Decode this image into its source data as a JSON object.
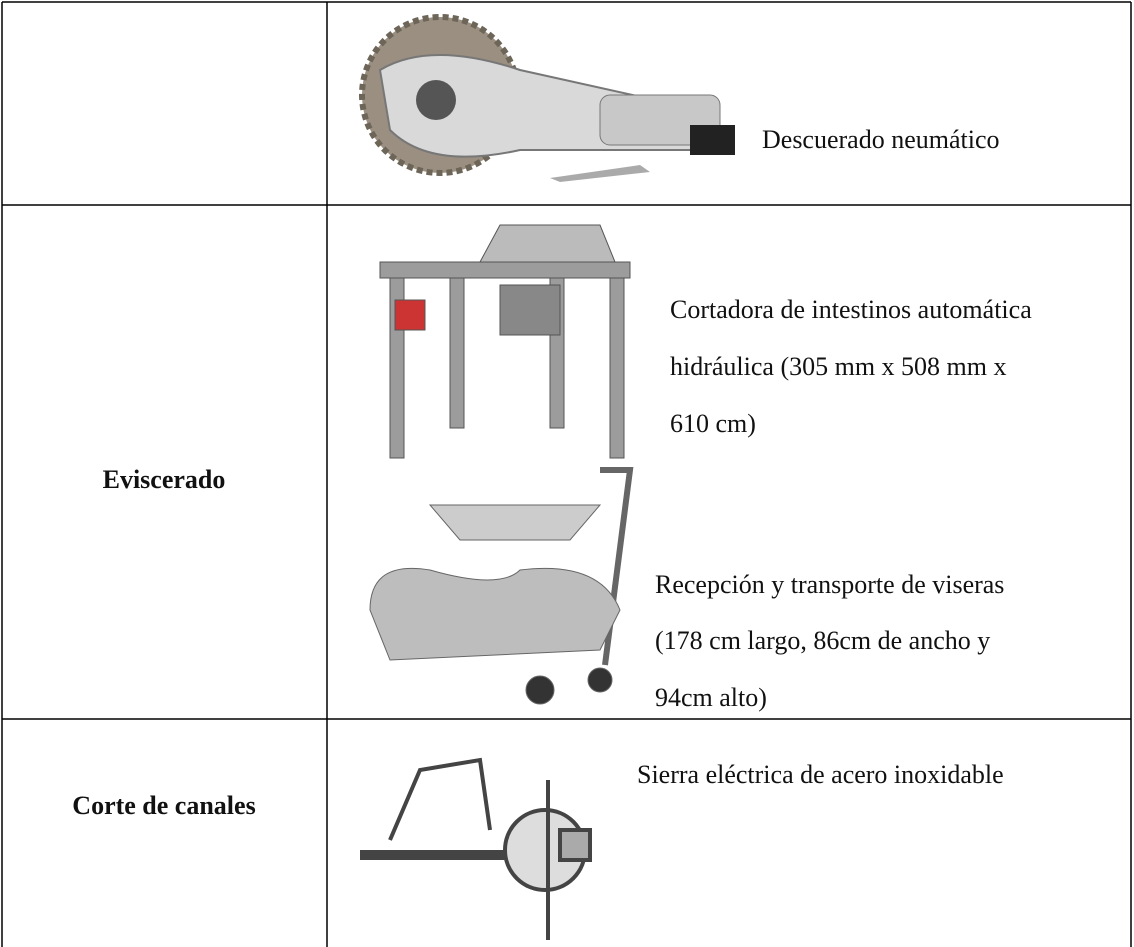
{
  "table": {
    "rows": [
      {
        "equipment": [
          {
            "lines": [
              "Descuerado neumático"
            ]
          }
        ]
      },
      {
        "stage": "Eviscerado",
        "equipment": [
          {
            "lines": [
              "Cortadora de intestinos automática",
              "hidráulica (305 mm x 508 mm x",
              "610 cm)"
            ]
          },
          {
            "lines": [
              "Recepción y transporte de viseras",
              "(178 cm largo, 86cm de ancho y",
              "94cm alto)"
            ]
          }
        ]
      },
      {
        "stage": "Corte de canales",
        "equipment": [
          {
            "lines": [
              "Sierra eléctrica de acero inoxidable"
            ]
          }
        ]
      }
    ]
  }
}
